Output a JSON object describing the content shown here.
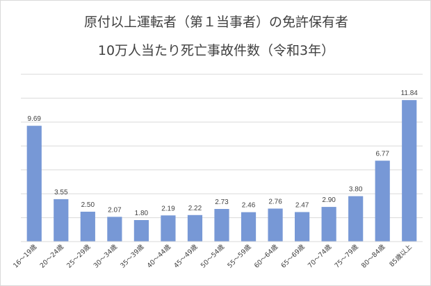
{
  "chart_data": {
    "type": "bar",
    "title_lines": [
      "原付以上運転者（第１当事者）の免許保有者",
      "10万人当たり死亡事故件数（令和3年）"
    ],
    "categories": [
      "16～19歳",
      "20～24歳",
      "25～29歳",
      "30～34歳",
      "35～39歳",
      "40～44歳",
      "45～49歳",
      "50～54歳",
      "55～59歳",
      "60～64歳",
      "65～69歳",
      "70～74歳",
      "75～79歳",
      "80～84歳",
      "85歳以上"
    ],
    "values": [
      9.69,
      3.55,
      2.5,
      2.07,
      1.8,
      2.19,
      2.22,
      2.73,
      2.46,
      2.76,
      2.47,
      2.9,
      3.8,
      6.77,
      11.84
    ],
    "value_labels": [
      "9.69",
      "3.55",
      "2.50",
      "2.07",
      "1.80",
      "2.19",
      "2.22",
      "2.73",
      "2.46",
      "2.76",
      "2.47",
      "2.90",
      "3.80",
      "6.77",
      "11.84"
    ],
    "ylim": [
      0,
      14
    ],
    "grid": true,
    "bar_color": "#7798d6"
  }
}
